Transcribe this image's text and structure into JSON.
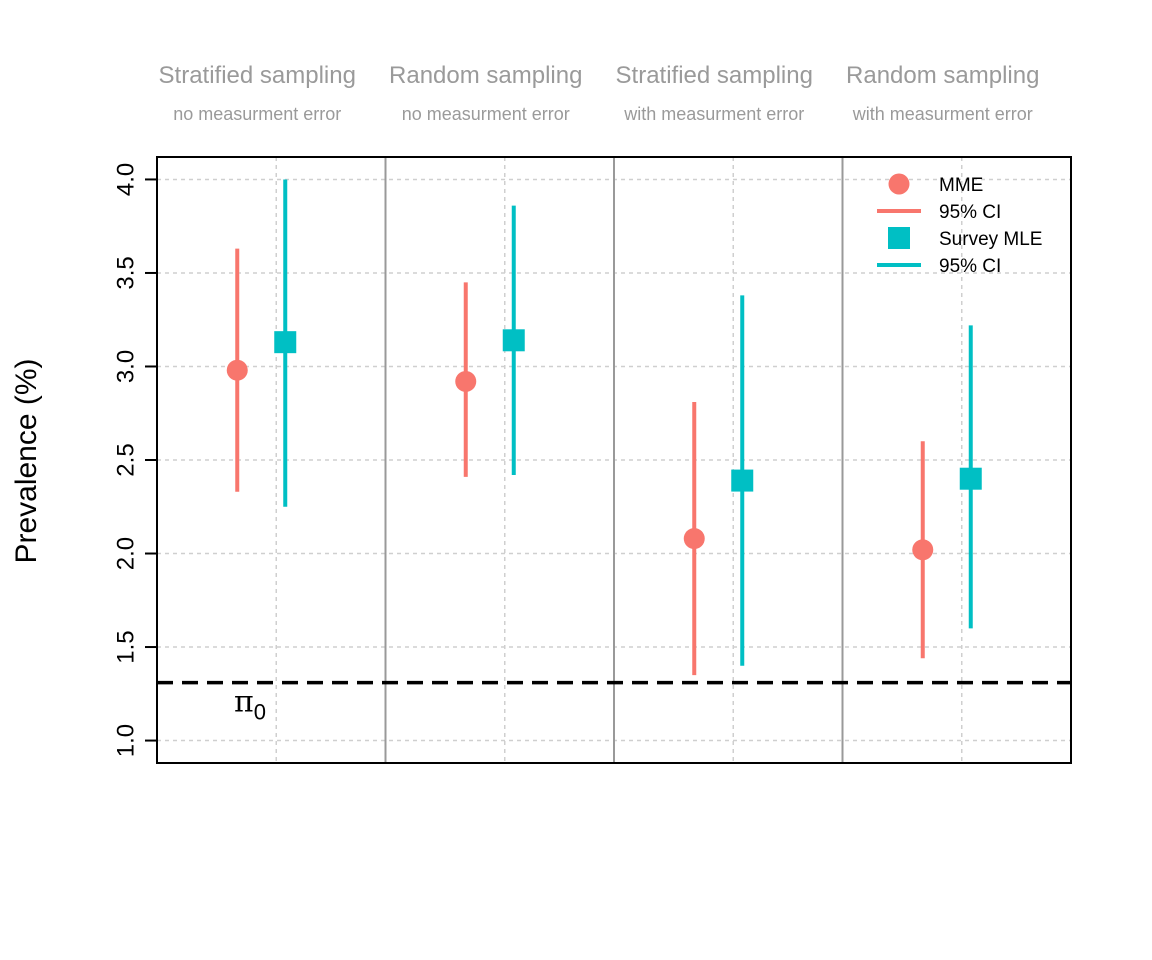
{
  "chart_data": {
    "type": "scatter",
    "ylabel": "Prevalence (%)",
    "ylim": [
      0.88,
      4.12
    ],
    "yticks": [
      "1.0",
      "1.5",
      "2.0",
      "2.5",
      "3.0",
      "3.5",
      "4.0"
    ],
    "grid": true,
    "legend_position": "top-right",
    "groups": [
      {
        "title": "Stratified sampling",
        "subtitle": "no measurment error"
      },
      {
        "title": "Random sampling",
        "subtitle": "no measurment error"
      },
      {
        "title": "Stratified sampling",
        "subtitle": "with measurment error"
      },
      {
        "title": "Random sampling",
        "subtitle": "with measurment error"
      }
    ],
    "series": [
      {
        "name": "MME",
        "ci_name": "95% CI",
        "color": "#F8766D",
        "marker": "circle",
        "estimates": [
          2.98,
          2.92,
          2.08,
          2.02
        ],
        "lower": [
          2.33,
          2.41,
          1.35,
          1.44
        ],
        "upper": [
          3.63,
          3.45,
          2.81,
          2.6
        ]
      },
      {
        "name": "Survey MLE",
        "ci_name": "95% CI",
        "color": "#00BFC4",
        "marker": "square",
        "estimates": [
          3.13,
          3.14,
          2.39,
          2.4
        ],
        "lower": [
          2.25,
          2.42,
          1.4,
          1.6
        ],
        "upper": [
          4.0,
          3.86,
          3.38,
          3.22
        ]
      }
    ],
    "reference": {
      "value": 1.31,
      "symbol": "π",
      "subscript": "0"
    }
  }
}
